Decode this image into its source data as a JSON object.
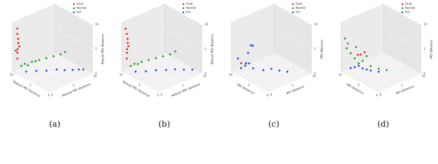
{
  "chart_data": [
    {
      "type": "scatter3d",
      "caption": "(a)",
      "x_label": "Robust MD distance",
      "y_label": "Robust MD distance",
      "z_label": "Robust MD distance",
      "xlim": [
        0,
        10
      ],
      "ylim": [
        0,
        10
      ],
      "zlim": [
        0,
        10
      ],
      "xticks": [
        0,
        5,
        10
      ],
      "yticks": [
        0,
        5,
        10
      ],
      "zticks": [
        0,
        5,
        10
      ],
      "series": [
        {
          "name": "Fault",
          "color": "#e41a1c",
          "x": [
            9,
            9.2,
            8.8,
            9.1,
            8.9,
            9,
            9.3,
            8.7,
            9.1
          ],
          "y": [
            0.3,
            0.5,
            0.2,
            0.6,
            0.4,
            0.3,
            0.2,
            0.5,
            0.4
          ],
          "z": [
            3,
            4,
            5,
            6,
            7,
            8,
            4.5,
            5.5,
            9
          ]
        },
        {
          "name": "Normal",
          "color": "#1a9a1a",
          "x": [
            8.5,
            8,
            7,
            6,
            5,
            4,
            3,
            2.5,
            7.5,
            6.5
          ],
          "y": [
            0.8,
            1.2,
            2,
            2.8,
            3.6,
            4.4,
            5.2,
            5.8,
            1.5,
            2.4
          ],
          "z": [
            1.5,
            2,
            2.5,
            3,
            3.5,
            4,
            4.5,
            5,
            1.8,
            2.7
          ]
        },
        {
          "name": "Ext",
          "color": "#1f3fd6",
          "x": [
            8,
            7,
            6,
            5,
            4,
            3,
            2.5,
            2
          ],
          "y": [
            1.5,
            3,
            4.5,
            6,
            7,
            8,
            9,
            9.6
          ],
          "z": [
            0.3,
            0.3,
            0.2,
            0.3,
            0.2,
            0.3,
            0.2,
            0.2
          ]
        }
      ]
    },
    {
      "type": "scatter3d",
      "caption": "(b)",
      "x_label": "Robust MD distance",
      "y_label": "Robust MD distance",
      "z_label": "Robust MD distance",
      "xlim": [
        0,
        10
      ],
      "ylim": [
        0,
        10
      ],
      "zlim": [
        0,
        10
      ],
      "xticks": [
        0,
        5,
        10
      ],
      "yticks": [
        0,
        5,
        10
      ],
      "zticks": [
        0,
        5,
        10
      ],
      "series": [
        {
          "name": "Fault",
          "color": "#e41a1c",
          "x": [
            9,
            9.2,
            8.8,
            9.1,
            8.9,
            9,
            9.2,
            8.8
          ],
          "y": [
            0.3,
            0.5,
            0.2,
            0.6,
            0.4,
            0.3,
            0.2,
            0.5
          ],
          "z": [
            3,
            4,
            5,
            6,
            7,
            8,
            9,
            5.5
          ]
        },
        {
          "name": "Normal",
          "color": "#1a9a1a",
          "x": [
            8.5,
            8,
            7,
            6,
            5,
            4,
            3,
            2.5,
            7.5
          ],
          "y": [
            0.8,
            1.2,
            2,
            2.8,
            3.6,
            4.4,
            5.2,
            6,
            1.6
          ],
          "z": [
            1.5,
            2,
            2.5,
            3,
            3.5,
            4,
            4.5,
            5,
            2
          ]
        },
        {
          "name": "Ext",
          "color": "#1f3fd6",
          "x": [
            8,
            7,
            6,
            5,
            4,
            3,
            2
          ],
          "y": [
            1.5,
            3,
            4.5,
            6,
            7.2,
            8.4,
            9.5
          ],
          "z": [
            0.3,
            0.2,
            0.3,
            0.2,
            0.3,
            0.2,
            0.2
          ]
        }
      ]
    },
    {
      "type": "scatter3d",
      "caption": "(c)",
      "x_label": "MD distance",
      "y_label": "MD distance",
      "z_label": "MD distance",
      "xlim": [
        0,
        10
      ],
      "ylim": [
        0,
        10
      ],
      "zlim": [
        0,
        10
      ],
      "xticks": [
        0,
        5,
        10
      ],
      "yticks": [
        0,
        5,
        10
      ],
      "zticks": [
        0,
        5,
        10
      ],
      "series": [
        {
          "name": "Fault",
          "color": "#e41a1c",
          "x": [
            8.5
          ],
          "y": [
            1
          ],
          "z": [
            2
          ]
        },
        {
          "name": "Normal",
          "color": "#1a9a1a",
          "x": [
            8
          ],
          "y": [
            1.5
          ],
          "z": [
            1.5
          ]
        },
        {
          "name": "Ext",
          "color": "#1f3fd6",
          "x": [
            8.5,
            8,
            7.5,
            7,
            8.8,
            7.8,
            6,
            5,
            4,
            6.5,
            8.2,
            7.2,
            3
          ],
          "y": [
            1,
            1.5,
            2,
            2.5,
            0.5,
            2,
            4,
            5,
            6,
            2,
            3,
            1,
            7
          ],
          "z": [
            1,
            1.5,
            2,
            1,
            3,
            4,
            0.5,
            0.8,
            0.5,
            6,
            5,
            2.5,
            0.3
          ]
        }
      ]
    },
    {
      "type": "scatter3d",
      "caption": "(d)",
      "x_label": "MD distance",
      "y_label": "MD distance",
      "z_label": "MD distance",
      "xlim": [
        0,
        10
      ],
      "ylim": [
        0,
        10
      ],
      "zlim": [
        0,
        10
      ],
      "xticks": [
        0,
        5,
        10
      ],
      "yticks": [
        0,
        5,
        10
      ],
      "zticks": [
        0,
        5,
        10
      ],
      "series": [
        {
          "name": "Fault",
          "color": "#e41a1c",
          "x": [
            7,
            6.5,
            7.5
          ],
          "y": [
            2,
            2.5,
            1.8
          ],
          "z": [
            4,
            4.5,
            3.8
          ]
        },
        {
          "name": "Normal",
          "color": "#1a9a1a",
          "x": [
            9,
            8.5,
            8,
            7.5,
            7,
            6,
            9.2,
            8.8,
            5,
            4,
            6.5,
            8.2
          ],
          "y": [
            0.5,
            1,
            1.5,
            2,
            2.5,
            3.5,
            0.3,
            0.6,
            4.5,
            5.5,
            3,
            2
          ],
          "z": [
            5,
            4,
            3,
            2,
            2.5,
            1.5,
            7,
            6,
            1,
            0.8,
            3.5,
            5
          ]
        },
        {
          "name": "Ext",
          "color": "#1f3fd6",
          "x": [
            8.5,
            8,
            7.5,
            7,
            6.5,
            6,
            5
          ],
          "y": [
            1,
            1.5,
            2,
            2.5,
            3,
            3.5,
            4.5
          ],
          "z": [
            1,
            1.2,
            1.5,
            1,
            0.8,
            0.6,
            0.4
          ]
        }
      ]
    }
  ]
}
